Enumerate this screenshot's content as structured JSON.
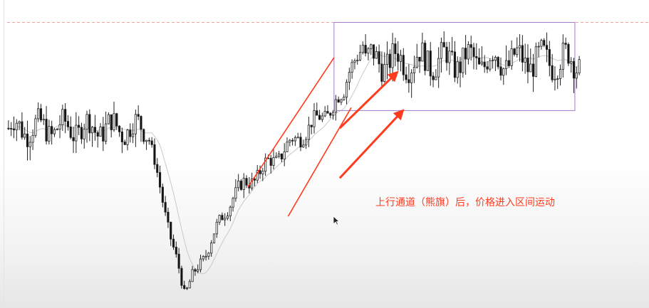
{
  "annotation_text": "上行通道（熊旗）后，价格进入区间运动",
  "colors": {
    "bull_candle": "#ffffff",
    "bear_candle": "#111111",
    "wick": "#222222",
    "channel_line": "#ff3b1f",
    "arrow": "#ff3b1f",
    "range_box": "#a27bd0",
    "ma_line": "#c9c9c9",
    "resistance_dash": "#f2a0a0",
    "annotation": "#ff3b1f"
  },
  "chart_data": {
    "type": "candlestick",
    "title": "",
    "xlabel": "",
    "ylabel": "",
    "grid": false,
    "ylim": [
      0,
      100
    ],
    "phases": [
      {
        "name": "sideways",
        "bars": 52,
        "start": 60,
        "end": 60,
        "noise": 8
      },
      {
        "name": "drop",
        "bars": 14,
        "start": 60,
        "end": 3,
        "noise": 4
      },
      {
        "name": "rebound",
        "bars": 18,
        "start": 3,
        "end": 37,
        "noise": 4
      },
      {
        "name": "channel",
        "bars": 40,
        "start": 37,
        "end": 70,
        "noise": 5
      },
      {
        "name": "spike",
        "bars": 8,
        "start": 70,
        "end": 90,
        "noise": 5
      },
      {
        "name": "range",
        "bars": 80,
        "start": 83,
        "end": 83,
        "noise": 9
      }
    ],
    "channel": {
      "lower": [
        [
          49,
          30
        ],
        [
          60,
          67
        ]
      ],
      "upper": [
        [
          42,
          40
        ],
        [
          57,
          84
        ]
      ]
    },
    "range_box": {
      "x0": 57,
      "x1": 99,
      "y_low": 66,
      "y_high": 96
    },
    "resistance_level": 96,
    "arrows": [
      {
        "from": [
          58,
          60
        ],
        "to": [
          68,
          79
        ]
      },
      {
        "from": [
          58,
          43
        ],
        "to": [
          69,
          66
        ]
      }
    ]
  }
}
